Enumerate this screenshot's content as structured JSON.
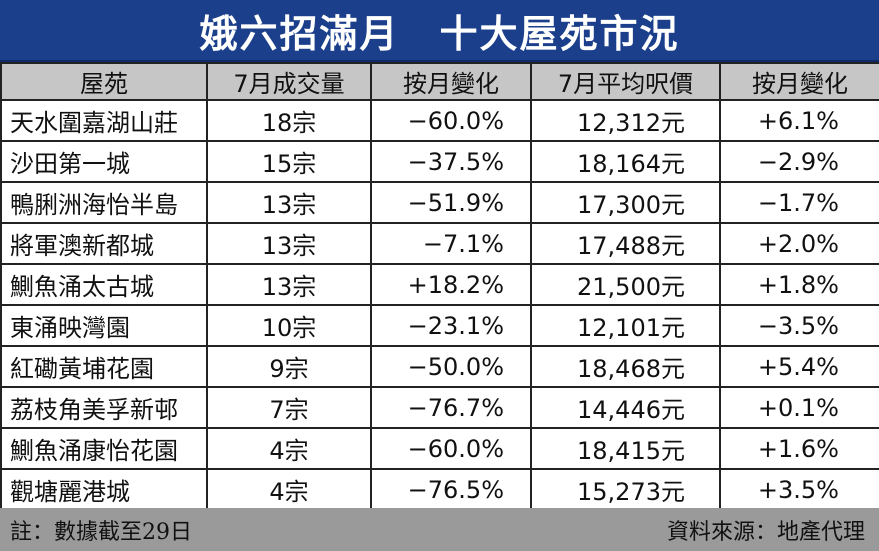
{
  "title": "娥六招滿月　十大屋苑市況",
  "headers": [
    "屋苑",
    "7月成交量",
    "按月變化",
    "7月平均呎價",
    "按月變化"
  ],
  "rows": [
    {
      "estate": "天水圍嘉湖山莊",
      "volume": "18宗",
      "volume_change": "−60.0%",
      "avg_price": "12,312元",
      "price_change": "+6.1%"
    },
    {
      "estate": "沙田第一城",
      "volume": "15宗",
      "volume_change": "−37.5%",
      "avg_price": "18,164元",
      "price_change": "−2.9%"
    },
    {
      "estate": "鴨脷洲海怡半島",
      "volume": "13宗",
      "volume_change": "−51.9%",
      "avg_price": "17,300元",
      "price_change": "−1.7%"
    },
    {
      "estate": "將軍澳新都城",
      "volume": "13宗",
      "volume_change": "−7.1%",
      "avg_price": "17,488元",
      "price_change": "+2.0%"
    },
    {
      "estate": "鰂魚涌太古城",
      "volume": "13宗",
      "volume_change": "+18.2%",
      "avg_price": "21,500元",
      "price_change": "+1.8%"
    },
    {
      "estate": "東涌映灣園",
      "volume": "10宗",
      "volume_change": "−23.1%",
      "avg_price": "12,101元",
      "price_change": "−3.5%"
    },
    {
      "estate": "紅磡黃埔花園",
      "volume": "9宗",
      "volume_change": "−50.0%",
      "avg_price": "18,468元",
      "price_change": "+5.4%"
    },
    {
      "estate": "荔枝角美孚新邨",
      "volume": "7宗",
      "volume_change": "−76.7%",
      "avg_price": "14,446元",
      "price_change": "+0.1%"
    },
    {
      "estate": "鰂魚涌康怡花園",
      "volume": "4宗",
      "volume_change": "−60.0%",
      "avg_price": "18,415元",
      "price_change": "+1.6%"
    },
    {
      "estate": "觀塘麗港城",
      "volume": "4宗",
      "volume_change": "−76.5%",
      "avg_price": "15,273元",
      "price_change": "+3.5%"
    }
  ],
  "footer": {
    "note": "註：數據截至29日",
    "source": "資料來源：地產代理"
  },
  "colors": {
    "title_bg": "#1b3f8a",
    "header_bg": "#c6c6c6",
    "footer_bg": "#9a9a9a"
  }
}
